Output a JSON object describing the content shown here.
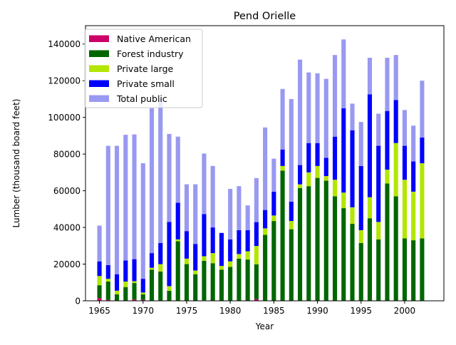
{
  "chart_data": {
    "type": "bar",
    "stacked": true,
    "title": "Pend Orielle",
    "xlabel": "Year",
    "ylabel": "Lumber (thousand board feet)",
    "xlim": [
      1963.4,
      2004.5
    ],
    "ylim": [
      0,
      150000
    ],
    "x_ticks": [
      1965,
      1970,
      1975,
      1980,
      1985,
      1990,
      1995,
      2000
    ],
    "y_ticks": [
      0,
      20000,
      40000,
      60000,
      80000,
      100000,
      120000,
      140000
    ],
    "grid": false,
    "legend_position": "upper-left",
    "categories": [
      1965,
      1966,
      1967,
      1968,
      1969,
      1970,
      1971,
      1972,
      1973,
      1974,
      1975,
      1976,
      1977,
      1978,
      1979,
      1980,
      1981,
      1982,
      1983,
      1984,
      1985,
      1986,
      1987,
      1988,
      1989,
      1990,
      1991,
      1992,
      1993,
      1994,
      1995,
      1996,
      1997,
      1998,
      1999,
      2000,
      2001,
      2002
    ],
    "series": [
      {
        "name": "Native American",
        "color": "#cc0066",
        "values": [
          1500,
          500,
          0,
          0,
          700,
          500,
          0,
          0,
          0,
          0,
          0,
          0,
          300,
          0,
          0,
          0,
          0,
          0,
          900,
          0,
          0,
          0,
          0,
          0,
          0,
          0,
          0,
          0,
          0,
          0,
          0,
          0,
          0,
          0,
          0,
          0,
          0,
          0
        ]
      },
      {
        "name": "Forest industry",
        "color": "#006600",
        "values": [
          7000,
          10000,
          3500,
          7500,
          9000,
          3000,
          17000,
          16000,
          5500,
          32500,
          20000,
          14500,
          21500,
          20500,
          17000,
          18500,
          23000,
          22500,
          19000,
          36000,
          43500,
          71000,
          39000,
          61500,
          62500,
          67000,
          65500,
          57000,
          50500,
          42000,
          31500,
          45000,
          33500,
          64000,
          57000,
          34000,
          33000,
          34000
        ]
      },
      {
        "name": "Private large",
        "color": "#b3e600",
        "values": [
          5000,
          1500,
          2000,
          3000,
          1000,
          1000,
          1000,
          4000,
          2500,
          1000,
          3000,
          2000,
          2500,
          5500,
          2000,
          3000,
          2500,
          4500,
          10000,
          3500,
          3000,
          2500,
          4500,
          2000,
          7500,
          6500,
          2500,
          9000,
          8500,
          9000,
          7000,
          11500,
          9500,
          7500,
          29000,
          32000,
          26500,
          41000
        ]
      },
      {
        "name": "Private small",
        "color": "#0000ff",
        "values": [
          8000,
          7500,
          9000,
          11500,
          12000,
          7500,
          8000,
          11500,
          35000,
          20000,
          15000,
          14500,
          23000,
          14000,
          18000,
          12000,
          13000,
          11500,
          13000,
          10000,
          13000,
          9000,
          10500,
          10500,
          16000,
          12500,
          10000,
          23500,
          46000,
          42000,
          35000,
          56000,
          41500,
          32000,
          23500,
          18500,
          16500,
          14000
        ]
      },
      {
        "name": "Total public",
        "color": "#9999f2",
        "values": [
          19500,
          65000,
          70000,
          68500,
          68000,
          63000,
          79000,
          78500,
          48000,
          36000,
          25500,
          32500,
          33000,
          33500,
          0,
          27500,
          24000,
          13500,
          24000,
          45000,
          18000,
          33000,
          56000,
          57500,
          38500,
          38000,
          43000,
          44500,
          37500,
          14500,
          24000,
          20000,
          17500,
          29000,
          24500,
          19500,
          19500,
          31000
        ]
      }
    ]
  }
}
